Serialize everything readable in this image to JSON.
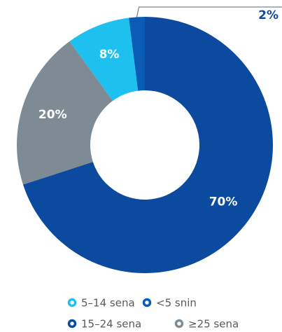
{
  "chart_data": {
    "type": "donut",
    "categories": [
      "5–14 sena",
      "<5 snin",
      "15–24 sena",
      "≥25 sena"
    ],
    "values": [
      8,
      2,
      70,
      20
    ],
    "value_labels": [
      "8%",
      "2%",
      "70%",
      "20%"
    ],
    "colors": [
      "#1ec0f0",
      "#0a5cb5",
      "#0b4a9e",
      "#7e8b95"
    ],
    "legend": "bottom"
  }
}
